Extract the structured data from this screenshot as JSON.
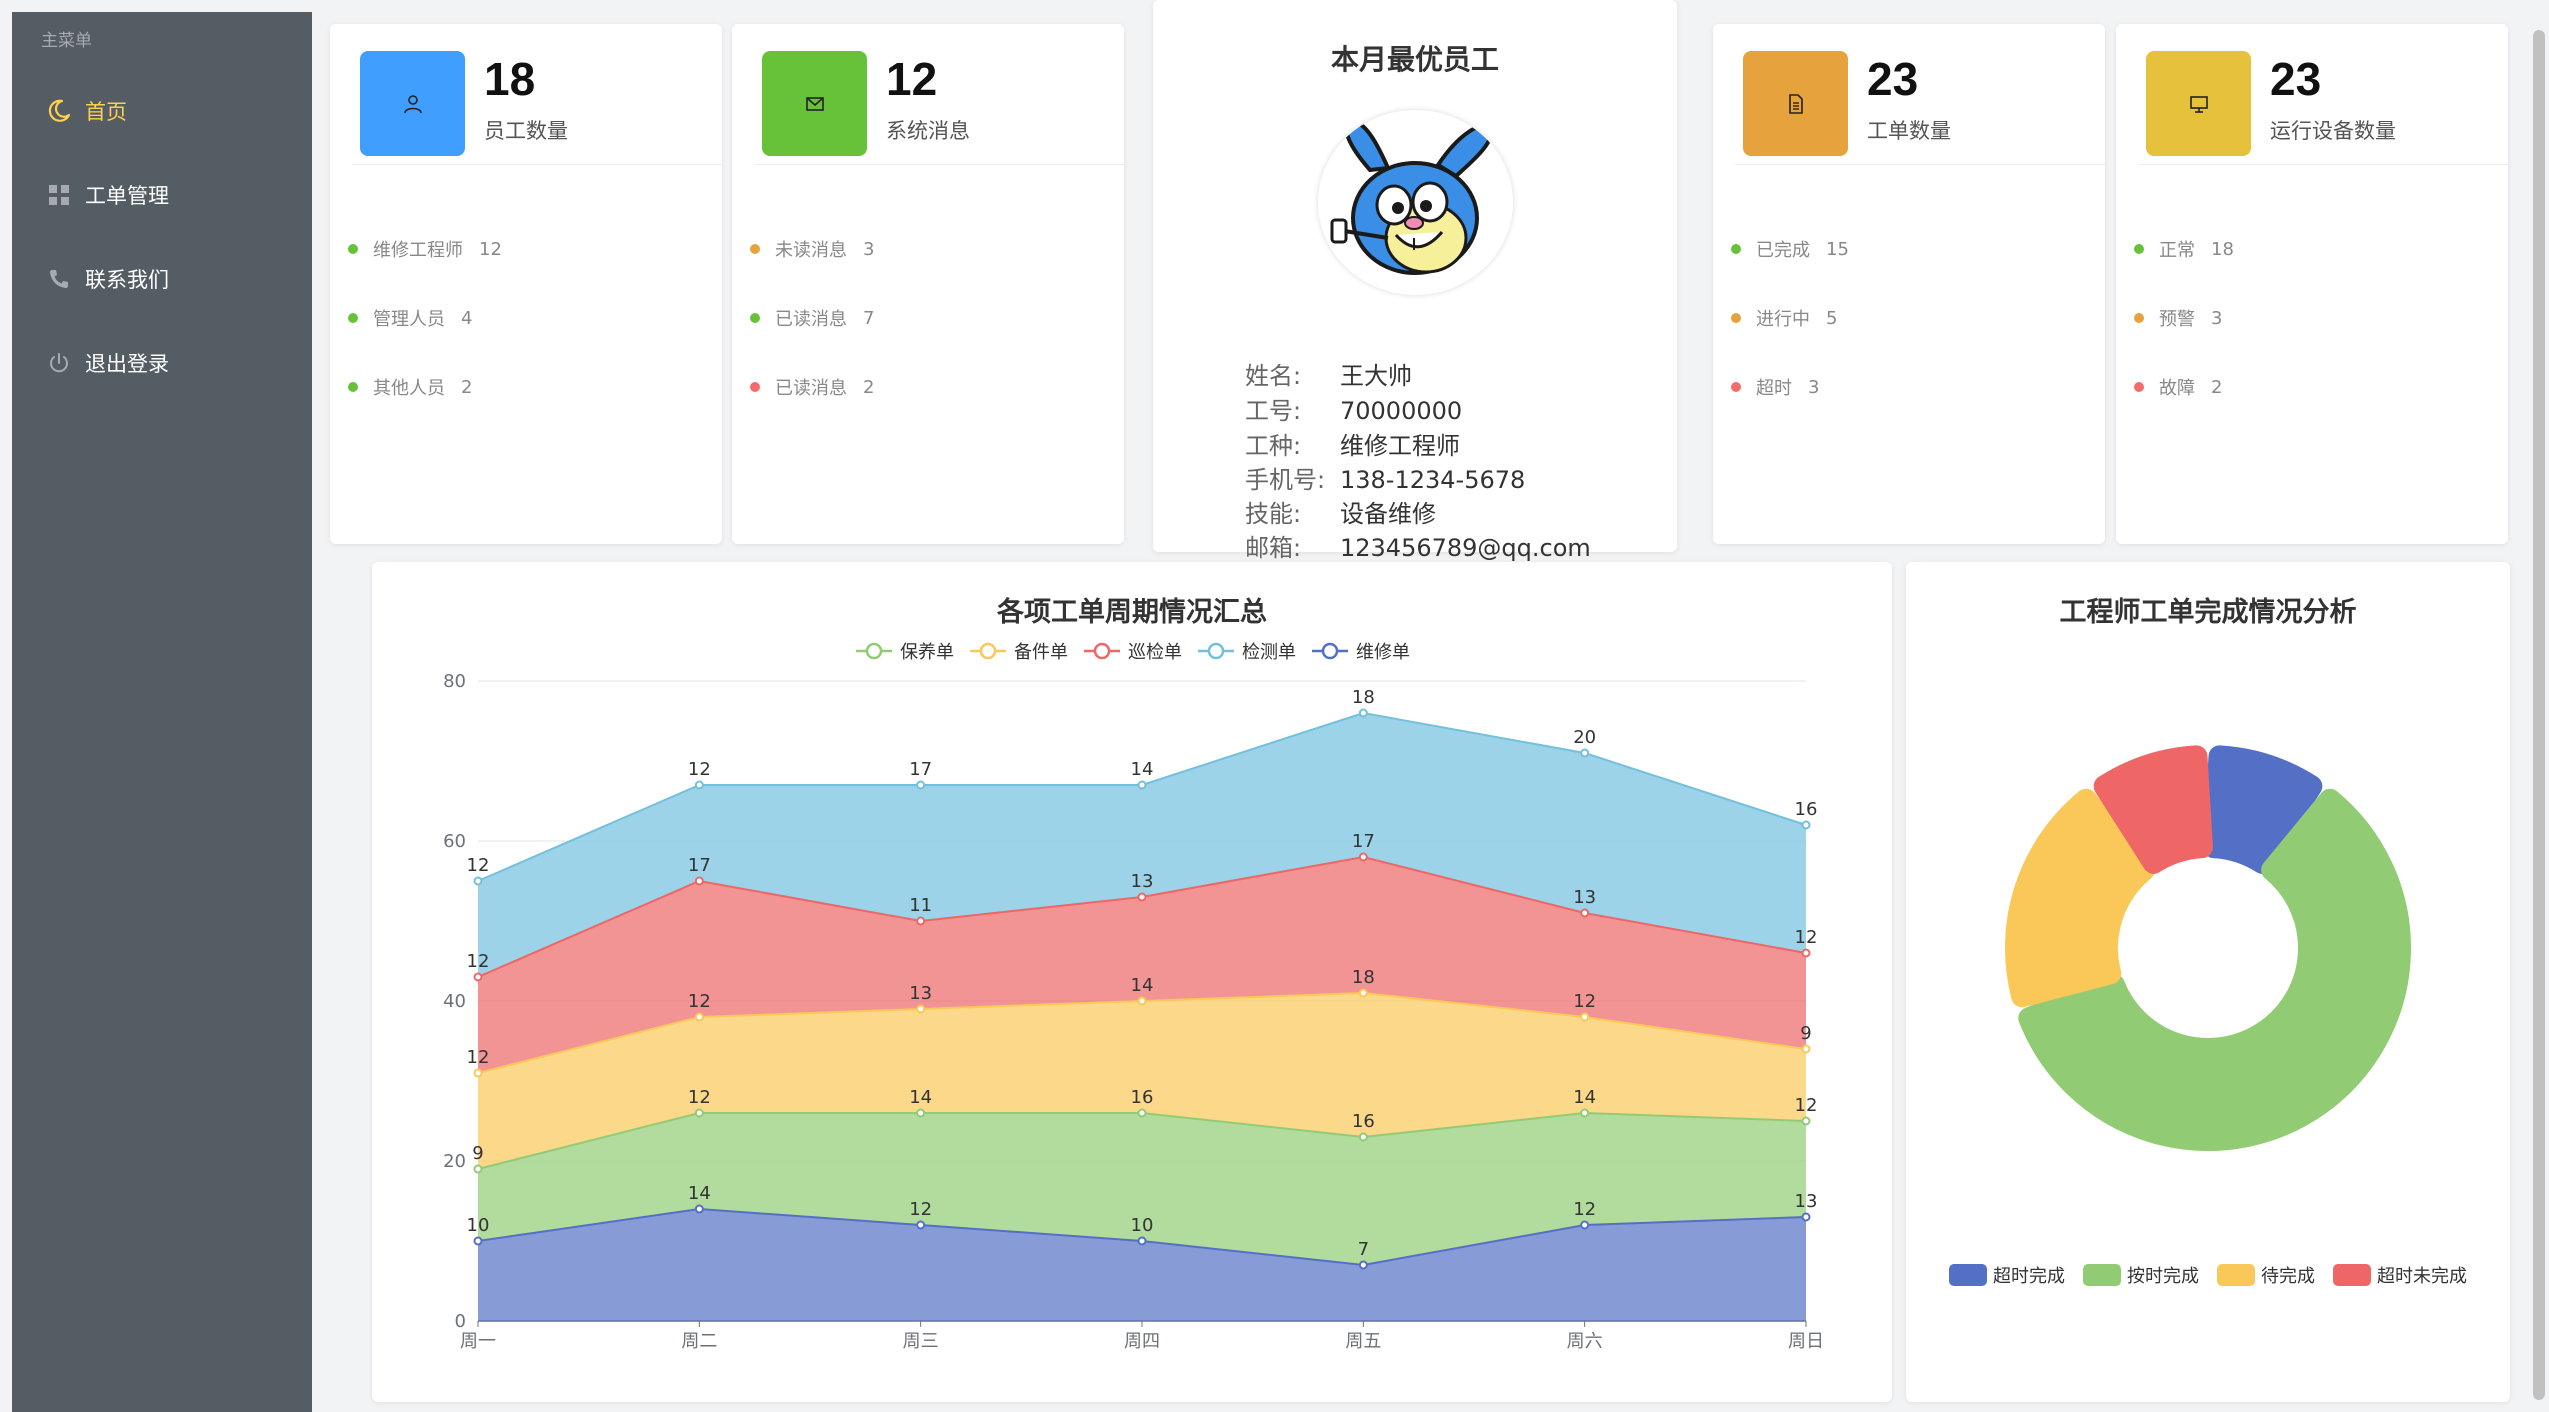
{
  "sidebar": {
    "title": "主菜单",
    "items": [
      {
        "label": "首页",
        "icon": "moon-icon"
      },
      {
        "label": "工单管理",
        "icon": "grid-icon"
      },
      {
        "label": "联系我们",
        "icon": "phone-icon"
      },
      {
        "label": "退出登录",
        "icon": "power-icon"
      }
    ],
    "active_color": "#ffd04b",
    "bg_color": "#545c64"
  },
  "stats": [
    {
      "value": "18",
      "label": "员工数量",
      "color": "#409eff",
      "icon": "user-icon",
      "rows": [
        {
          "label": "维修工程师",
          "value": "12",
          "status": "green"
        },
        {
          "label": "管理人员",
          "value": "4",
          "status": "green"
        },
        {
          "label": "其他人员",
          "value": "2",
          "status": "green"
        }
      ]
    },
    {
      "value": "12",
      "label": "系统消息",
      "color": "#67c23a",
      "icon": "mail-icon",
      "rows": [
        {
          "label": "未读消息",
          "value": "3",
          "status": "orange"
        },
        {
          "label": "已读消息",
          "value": "7",
          "status": "green"
        },
        {
          "label": "已读消息",
          "value": "2",
          "status": "red"
        }
      ]
    },
    {
      "value": "23",
      "label": "工单数量",
      "color": "#e6a23c",
      "icon": "document-icon",
      "rows": [
        {
          "label": "已完成",
          "value": "15",
          "status": "green"
        },
        {
          "label": "进行中",
          "value": "5",
          "status": "orange"
        },
        {
          "label": "超时",
          "value": "3",
          "status": "red"
        }
      ]
    },
    {
      "value": "23",
      "label": "运行设备数量",
      "color": "#e6c23c",
      "icon": "monitor-icon",
      "rows": [
        {
          "label": "正常",
          "value": "18",
          "status": "green"
        },
        {
          "label": "预警",
          "value": "3",
          "status": "orange"
        },
        {
          "label": "故障",
          "value": "2",
          "status": "red"
        }
      ]
    }
  ],
  "best_employee": {
    "title": "本月最优员工",
    "fields": [
      {
        "key": "姓名:",
        "value": "王大帅"
      },
      {
        "key": "工号:",
        "value": "70000000"
      },
      {
        "key": "工种:",
        "value": "维修工程师"
      },
      {
        "key": "手机号:",
        "value": "138-1234-5678"
      },
      {
        "key": "技能:",
        "value": "设备维修"
      },
      {
        "key": "邮箱:",
        "value": "123456789@qq.com"
      }
    ]
  },
  "chart_data": [
    {
      "type": "area",
      "stacked": true,
      "title": "各项工单周期情况汇总",
      "categories": [
        "周一",
        "周二",
        "周三",
        "周四",
        "周五",
        "周六",
        "周日"
      ],
      "ylim": [
        0,
        80
      ],
      "yticks": [
        0,
        20,
        40,
        60,
        80
      ],
      "grid": true,
      "legend_position": "top",
      "series": [
        {
          "name": "维修单",
          "color": "#5470c6",
          "values": [
            10,
            14,
            12,
            10,
            7,
            12,
            13
          ]
        },
        {
          "name": "保养单",
          "color": "#91cc75",
          "values": [
            9,
            12,
            14,
            16,
            16,
            14,
            12
          ]
        },
        {
          "name": "备件单",
          "color": "#fac858",
          "values": [
            12,
            12,
            13,
            14,
            18,
            12,
            9
          ]
        },
        {
          "name": "巡检单",
          "color": "#ee6666",
          "values": [
            12,
            17,
            11,
            13,
            17,
            13,
            12
          ]
        },
        {
          "name": "检测单",
          "color": "#73c0de",
          "values": [
            12,
            12,
            17,
            14,
            18,
            20,
            16
          ]
        }
      ],
      "legend_order": [
        "保养单",
        "备件单",
        "巡检单",
        "检测单",
        "维修单"
      ]
    },
    {
      "type": "pie",
      "title": "工程师工单完成情况分析",
      "donut": true,
      "legend_position": "bottom",
      "slices": [
        {
          "name": "超时完成",
          "value": 1,
          "color": "#5470c6"
        },
        {
          "name": "按时完成",
          "value": 6,
          "color": "#91cc75"
        },
        {
          "name": "待完成",
          "value": 2,
          "color": "#fac858"
        },
        {
          "name": "超时未完成",
          "value": 1,
          "color": "#ee6666"
        }
      ]
    }
  ]
}
